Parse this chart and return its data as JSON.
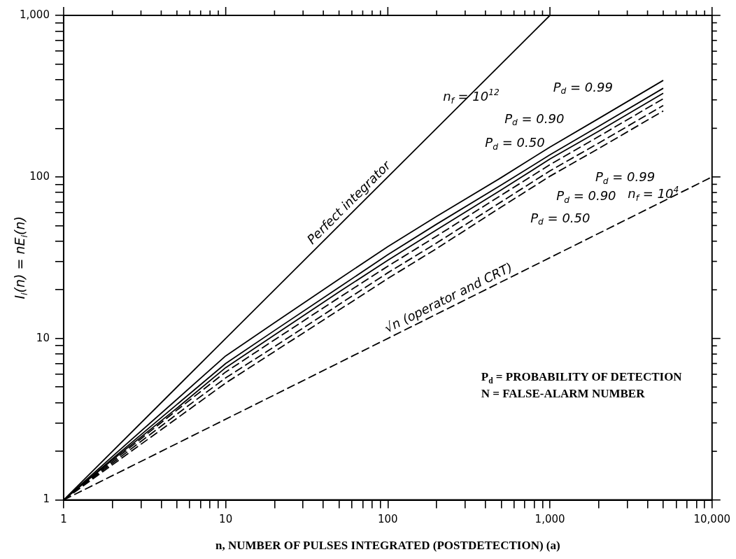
{
  "chart_data": {
    "type": "line",
    "xlabel": "n, NUMBER OF PULSES INTEGRATED (POSTDETECTION) (a)",
    "ylabel": "I$_{i}$(n) = nE$_{i}$(n)",
    "log": "xy",
    "marker": "none",
    "x": [
      1,
      2,
      5,
      10,
      20,
      50,
      100,
      200,
      500,
      1000,
      2000,
      5000
    ],
    "xlim": [
      1,
      10000
    ],
    "ylim": [
      1,
      1000
    ],
    "xticks": [
      1,
      {
        "value": 2,
        "label": null
      },
      {
        "value": 3,
        "label": null
      },
      {
        "value": 4,
        "label": null
      },
      {
        "value": 5,
        "label": null
      },
      {
        "value": 6,
        "label": null
      },
      {
        "value": 7,
        "label": null
      },
      {
        "value": 8,
        "label": null
      },
      {
        "value": 9,
        "label": null
      },
      10,
      {
        "value": 20,
        "label": null
      },
      {
        "value": 30,
        "label": null
      },
      {
        "value": 40,
        "label": null
      },
      {
        "value": 50,
        "label": null
      },
      {
        "value": 60,
        "label": null
      },
      {
        "value": 70,
        "label": null
      },
      {
        "value": 80,
        "label": null
      },
      {
        "value": 90,
        "label": null
      },
      100,
      {
        "value": 200,
        "label": null
      },
      {
        "value": 300,
        "label": null
      },
      {
        "value": 400,
        "label": null
      },
      {
        "value": 500,
        "label": null
      },
      {
        "value": 600,
        "label": null
      },
      {
        "value": 700,
        "label": null
      },
      {
        "value": 800,
        "label": null
      },
      {
        "value": 900,
        "label": null
      },
      {
        "value": 1000,
        "label": "1,000"
      },
      {
        "value": 2000,
        "label": null
      },
      {
        "value": 3000,
        "label": null
      },
      {
        "value": 4000,
        "label": null
      },
      {
        "value": 5000,
        "label": null
      },
      {
        "value": 6000,
        "label": null
      },
      {
        "value": 7000,
        "label": null
      },
      {
        "value": 8000,
        "label": null
      },
      {
        "value": 9000,
        "label": null
      },
      {
        "value": 10000,
        "label": "10,000"
      }
    ],
    "yticks": [
      1,
      {
        "value": 2,
        "label": null
      },
      {
        "value": 3,
        "label": null
      },
      {
        "value": 4,
        "label": null
      },
      {
        "value": 5,
        "label": null
      },
      {
        "value": 6,
        "label": null
      },
      {
        "value": 7,
        "label": null
      },
      {
        "value": 8,
        "label": null
      },
      {
        "value": 9,
        "label": null
      },
      10,
      {
        "value": 20,
        "label": null
      },
      {
        "value": 30,
        "label": null
      },
      {
        "value": 40,
        "label": null
      },
      {
        "value": 50,
        "label": null
      },
      {
        "value": 60,
        "label": null
      },
      {
        "value": 70,
        "label": null
      },
      {
        "value": 80,
        "label": null
      },
      {
        "value": 90,
        "label": null
      },
      100,
      {
        "value": 200,
        "label": null
      },
      {
        "value": 300,
        "label": null
      },
      {
        "value": 400,
        "label": null
      },
      {
        "value": 500,
        "label": null
      },
      {
        "value": 600,
        "label": null
      },
      {
        "value": 700,
        "label": null
      },
      {
        "value": 800,
        "label": null
      },
      {
        "value": 900,
        "label": null
      },
      {
        "value": 1000,
        "label": "1,000"
      }
    ],
    "series": [
      {
        "name": "Perfect integrator",
        "color": "#000000",
        "line_style": "solid",
        "x": [
          1,
          1000
        ],
        "values": [
          1,
          1000
        ]
      },
      {
        "name": "√n (operator and CRT)",
        "color": "#000000",
        "line_style": "dashed",
        "x": [
          1,
          10000
        ],
        "values": [
          1,
          100
        ]
      },
      {
        "color": "#000000",
        "line_style": "solid",
        "values": [
          1,
          1.86,
          4.2,
          7.8,
          12.5,
          23.3,
          37,
          57,
          99,
          153,
          230,
          396
        ]
      },
      {
        "color": "#000000",
        "line_style": "solid",
        "values": [
          1,
          1.8,
          3.9,
          7.0,
          11.2,
          20.7,
          33,
          51,
          89,
          137,
          206,
          354
        ]
      },
      {
        "color": "#000000",
        "line_style": "solid",
        "values": [
          1,
          1.77,
          3.7,
          6.6,
          10.5,
          19.4,
          30.5,
          47,
          83,
          129,
          192,
          330
        ]
      },
      {
        "color": "#000000",
        "line_style": "dashed",
        "values": [
          1,
          1.73,
          3.6,
          6.2,
          9.8,
          17.9,
          28,
          43,
          77,
          119,
          178,
          305
        ]
      },
      {
        "color": "#000000",
        "line_style": "dashed",
        "values": [
          1,
          1.69,
          3.4,
          5.7,
          8.9,
          16.2,
          25.5,
          39,
          70,
          109,
          162,
          277
        ]
      },
      {
        "color": "#000000",
        "line_style": "dashed",
        "values": [
          1,
          1.65,
          3.2,
          5.3,
          8.3,
          15,
          23.5,
          36,
          65,
          101,
          150,
          256
        ]
      }
    ],
    "annotations": [
      "n$_{f}$ = 10$^{12}$",
      "P$_{d}$ = 0.99",
      "P$_{d}$ = 0.90",
      "P$_{d}$ = 0.50",
      "P$_{d}$ = 0.99",
      "P$_{d}$ = 0.90",
      "n$_{f}$ = 10$^{4}$",
      "P$_{d}$ = 0.50",
      "P$_{d}$ = PROBABILITY OF DETECTION",
      "N = FALSE-ALARM NUMBER"
    ]
  }
}
